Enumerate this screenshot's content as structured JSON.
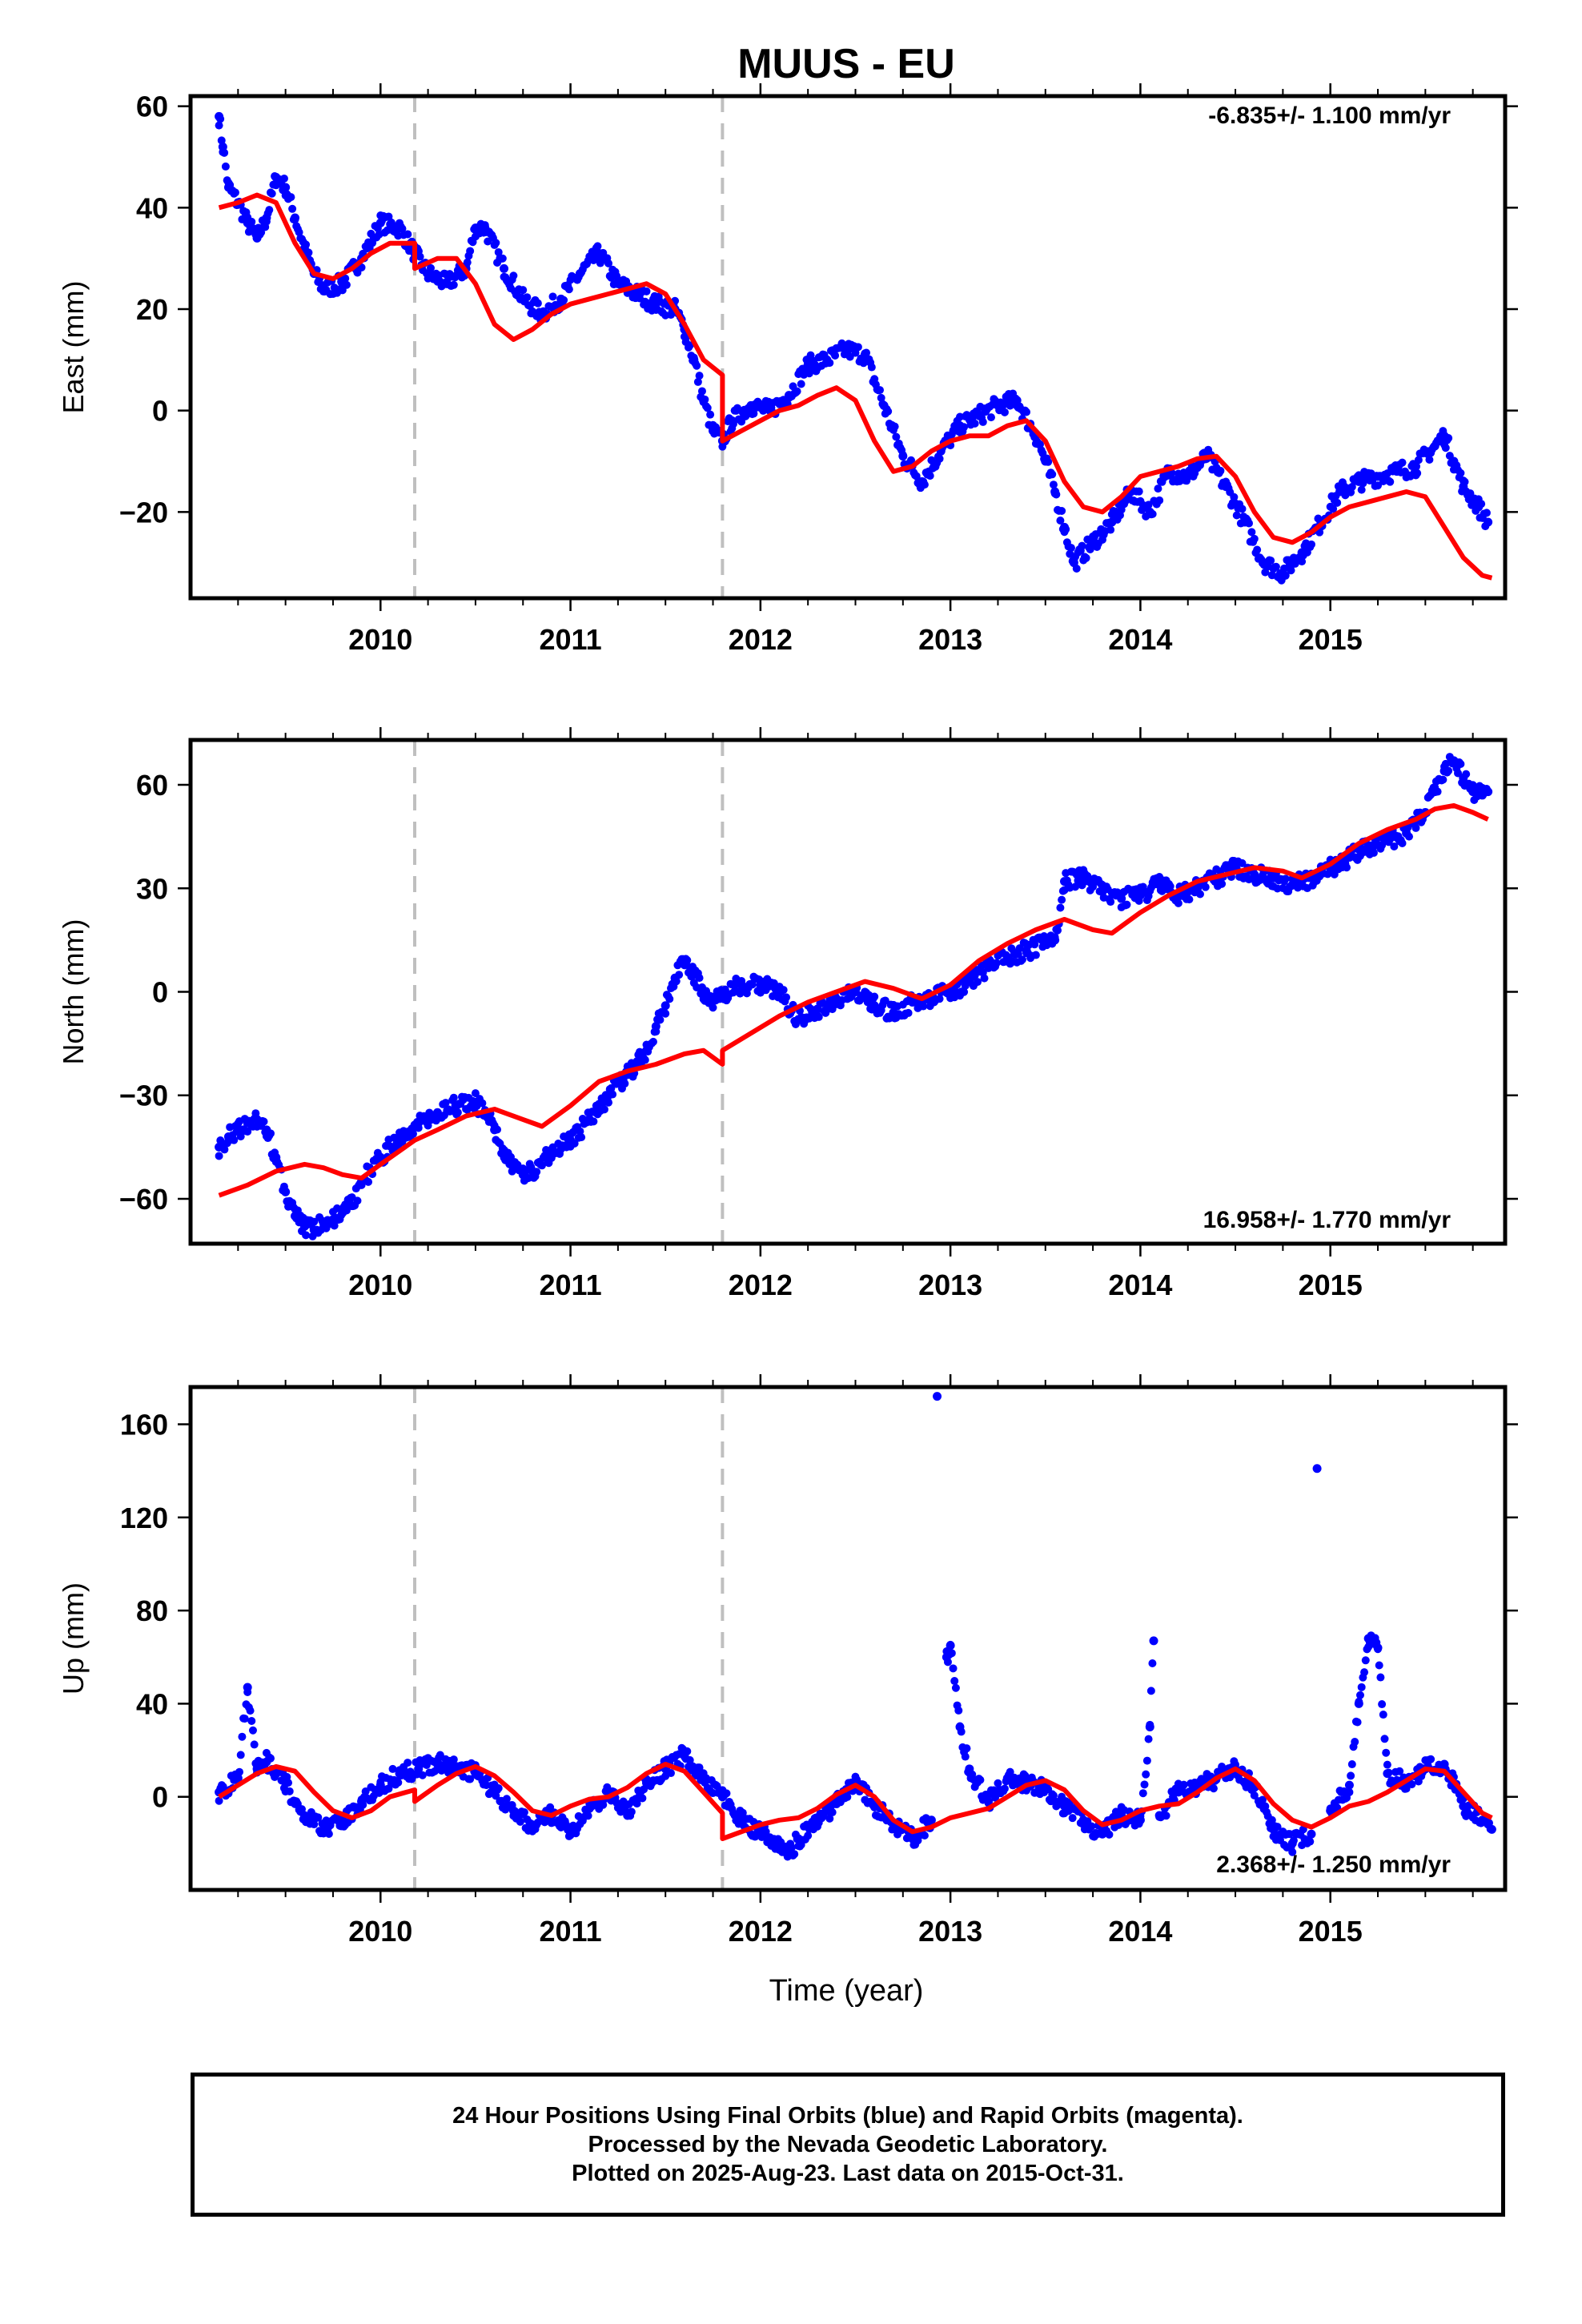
{
  "figure_title": "MUUS - EU",
  "colors": {
    "points": "#0000ff",
    "model": "#ff0000",
    "breaks": "#bfbfbf",
    "axes": "#000000"
  },
  "x_axis_label": "Time (year)",
  "footer": {
    "line1": "24 Hour Positions Using Final Orbits (blue) and Rapid Orbits (magenta).",
    "line2": "Processed by the Nevada Geodetic Laboratory.",
    "line3": "Plotted on 2025-Aug-23. Last data on 2015-Oct-31."
  },
  "chart_data": [
    {
      "type": "scatter",
      "ylabel": "East (mm)",
      "rate_label": "-6.835+/- 1.100 mm/yr",
      "xlim": [
        2009.0,
        2015.92
      ],
      "ylim": [
        -37,
        62
      ],
      "x_ticks": [
        2010,
        2011,
        2012,
        2013,
        2014,
        2015
      ],
      "y_ticks": [
        -20,
        0,
        20,
        40,
        60
      ],
      "y_tick_labels": [
        "−20",
        "0",
        "20",
        "40",
        "60"
      ],
      "breaks": [
        2010.18,
        2011.8
      ],
      "series": [
        {
          "name": "",
          "kind": "points",
          "x": [
            2009.15,
            2009.17,
            2009.2,
            2009.25,
            2009.3,
            2009.35,
            2009.4,
            2009.45,
            2009.5,
            2009.55,
            2009.6,
            2009.65,
            2009.7,
            2009.8,
            2009.9,
            2010.0,
            2010.1,
            2010.18,
            2010.25,
            2010.35,
            2010.45,
            2010.5,
            2010.55,
            2010.65,
            2010.75,
            2010.85,
            2010.95,
            2011.05,
            2011.15,
            2011.25,
            2011.35,
            2011.45,
            2011.55,
            2011.6,
            2011.65,
            2011.7,
            2011.75,
            2011.8,
            2011.85,
            2011.95,
            2012.05,
            2012.15,
            2012.25,
            2012.35,
            2012.45,
            2012.55,
            2012.65,
            2012.75,
            2012.85,
            2012.95,
            2013.05,
            2013.15,
            2013.25,
            2013.35,
            2013.45,
            2013.5,
            2013.55,
            2013.6,
            2013.65,
            2013.75,
            2013.85,
            2013.95,
            2014.05,
            2014.15,
            2014.25,
            2014.35,
            2014.45,
            2014.55,
            2014.65,
            2014.75,
            2014.85,
            2014.95,
            2015.05,
            2015.15,
            2015.25,
            2015.35,
            2015.45,
            2015.55,
            2015.6,
            2015.65,
            2015.7,
            2015.78,
            2015.83
          ],
          "y": [
            58,
            52,
            44,
            41,
            37,
            34,
            38,
            46,
            44,
            38,
            32,
            27,
            24,
            25,
            30,
            37,
            36,
            31,
            27,
            25,
            28,
            36,
            36,
            28,
            22,
            19,
            22,
            27,
            31,
            25,
            23,
            21,
            20,
            16,
            10,
            2,
            -4,
            -6,
            -2,
            1,
            0,
            3,
            9,
            10,
            12,
            11,
            1,
            -9,
            -14,
            -8,
            -3,
            -1,
            1,
            2,
            -5,
            -10,
            -16,
            -23,
            -30,
            -26,
            -22,
            -16,
            -20,
            -12,
            -13,
            -9,
            -15,
            -22,
            -30,
            -32,
            -28,
            -22,
            -16,
            -14,
            -13,
            -12,
            -11,
            -7,
            -5,
            -10,
            -15,
            -19,
            -22
          ]
        },
        {
          "name": "",
          "kind": "line",
          "x": [
            2009.15,
            2009.25,
            2009.35,
            2009.45,
            2009.55,
            2009.65,
            2009.75,
            2009.85,
            2009.95,
            2010.05,
            2010.18,
            2010.18,
            2010.3,
            2010.4,
            2010.5,
            2010.6,
            2010.7,
            2010.8,
            2010.9,
            2011.0,
            2011.1,
            2011.2,
            2011.3,
            2011.4,
            2011.5,
            2011.6,
            2011.7,
            2011.8,
            2011.8,
            2011.9,
            2012.0,
            2012.1,
            2012.2,
            2012.3,
            2012.4,
            2012.5,
            2012.6,
            2012.7,
            2012.8,
            2012.9,
            2013.0,
            2013.1,
            2013.2,
            2013.3,
            2013.4,
            2013.5,
            2013.6,
            2013.7,
            2013.8,
            2013.9,
            2014.0,
            2014.1,
            2014.2,
            2014.3,
            2014.4,
            2014.5,
            2014.6,
            2014.7,
            2014.8,
            2014.9,
            2015.0,
            2015.1,
            2015.2,
            2015.3,
            2015.4,
            2015.5,
            2015.6,
            2015.7,
            2015.8,
            2015.85
          ],
          "y": [
            40,
            41,
            42.5,
            41,
            33,
            27,
            26,
            28,
            31,
            33,
            33,
            28,
            30,
            30,
            25,
            17,
            14,
            16,
            19,
            21,
            22,
            23,
            24,
            25,
            23,
            17,
            10,
            7,
            -6,
            -4,
            -2,
            0,
            1,
            3,
            4.5,
            2,
            -6,
            -12,
            -11,
            -8,
            -6,
            -5,
            -5,
            -3,
            -2,
            -6,
            -14,
            -19,
            -20,
            -17,
            -13,
            -12,
            -11,
            -9.5,
            -9,
            -13,
            -20,
            -25,
            -26,
            -24,
            -21,
            -19,
            -18,
            -17,
            -16,
            -17,
            -23,
            -29,
            -32.5,
            -33
          ]
        }
      ]
    },
    {
      "type": "scatter",
      "ylabel": "North (mm)",
      "rate_label": "16.958+/- 1.770 mm/yr",
      "xlim": [
        2009.0,
        2015.92
      ],
      "ylim": [
        -73,
        73
      ],
      "x_ticks": [
        2010,
        2011,
        2012,
        2013,
        2014,
        2015
      ],
      "y_ticks": [
        -60,
        -30,
        0,
        30,
        60
      ],
      "y_tick_labels": [
        "−60",
        "−30",
        "0",
        "30",
        "60"
      ],
      "breaks": [
        2010.18,
        2011.8
      ],
      "series": [
        {
          "name": "",
          "kind": "points",
          "x": [
            2009.15,
            2009.2,
            2009.25,
            2009.3,
            2009.35,
            2009.4,
            2009.45,
            2009.5,
            2009.55,
            2009.6,
            2009.65,
            2009.7,
            2009.75,
            2009.8,
            2009.85,
            2009.9,
            2010.0,
            2010.1,
            2010.2,
            2010.3,
            2010.4,
            2010.5,
            2010.55,
            2010.6,
            2010.65,
            2010.7,
            2010.75,
            2010.8,
            2010.9,
            2011.0,
            2011.1,
            2011.2,
            2011.3,
            2011.4,
            2011.45,
            2011.5,
            2011.55,
            2011.6,
            2011.65,
            2011.7,
            2011.75,
            2011.9,
            2012.0,
            2012.1,
            2012.2,
            2012.3,
            2012.4,
            2012.5,
            2012.6,
            2012.7,
            2012.8,
            2012.9,
            2013.0,
            2013.1,
            2013.2,
            2013.3,
            2013.4,
            2013.5,
            2013.55,
            2013.6,
            2013.7,
            2013.8,
            2013.9,
            2014.0,
            2014.1,
            2014.2,
            2014.3,
            2014.4,
            2014.5,
            2014.6,
            2014.7,
            2014.8,
            2014.9,
            2015.0,
            2015.1,
            2015.2,
            2015.3,
            2015.4,
            2015.5,
            2015.55,
            2015.6,
            2015.65,
            2015.7,
            2015.75,
            2015.8,
            2015.83
          ],
          "y": [
            -45,
            -42,
            -40,
            -38,
            -37,
            -40,
            -48,
            -58,
            -65,
            -68,
            -69,
            -67,
            -66,
            -64,
            -62,
            -55,
            -48,
            -42,
            -38,
            -35,
            -33,
            -32,
            -35,
            -40,
            -46,
            -51,
            -53,
            -52,
            -47,
            -43,
            -37,
            -30,
            -24,
            -17,
            -10,
            -4,
            4,
            9,
            5,
            0,
            -2,
            2,
            2,
            0,
            -8,
            -5,
            -2,
            0,
            -4,
            -6,
            -3,
            -2,
            0,
            3,
            7,
            10,
            12,
            14,
            15,
            32,
            33,
            29,
            27,
            28,
            31,
            28,
            30,
            33,
            36,
            34,
            33,
            31,
            33,
            36,
            39,
            42,
            44,
            46,
            52,
            58,
            64,
            67,
            62,
            58,
            57,
            58
          ]
        },
        {
          "name": "",
          "kind": "line",
          "x": [
            2009.15,
            2009.3,
            2009.45,
            2009.6,
            2009.7,
            2009.8,
            2009.9,
            2010.0,
            2010.18,
            2010.18,
            2010.3,
            2010.45,
            2010.6,
            2010.75,
            2010.85,
            2011.0,
            2011.15,
            2011.3,
            2011.45,
            2011.6,
            2011.7,
            2011.8,
            2011.8,
            2011.95,
            2012.1,
            2012.25,
            2012.4,
            2012.55,
            2012.7,
            2012.85,
            2013.0,
            2013.15,
            2013.3,
            2013.45,
            2013.6,
            2013.75,
            2013.85,
            2014.0,
            2014.15,
            2014.3,
            2014.45,
            2014.6,
            2014.75,
            2014.85,
            2015.0,
            2015.15,
            2015.3,
            2015.45,
            2015.55,
            2015.65,
            2015.75,
            2015.83
          ],
          "y": [
            -59,
            -56,
            -52,
            -50,
            -51,
            -53,
            -54,
            -50,
            -43,
            -43,
            -40,
            -36,
            -34,
            -37,
            -39,
            -33,
            -26,
            -23,
            -21,
            -18,
            -17,
            -21,
            -17,
            -12,
            -7,
            -3,
            0,
            3,
            1,
            -2,
            2,
            9,
            14,
            18,
            21,
            18,
            17,
            23,
            28,
            32,
            34,
            36,
            35,
            33,
            37,
            43,
            47,
            50,
            53,
            54,
            52,
            50
          ]
        }
      ]
    },
    {
      "type": "scatter",
      "ylabel": "Up (mm)",
      "rate_label": "2.368+/- 1.250 mm/yr",
      "xlim": [
        2009.0,
        2015.92
      ],
      "ylim": [
        -40,
        176
      ],
      "x_ticks": [
        2010,
        2011,
        2012,
        2013,
        2014,
        2015
      ],
      "y_ticks": [
        0,
        40,
        80,
        120,
        160
      ],
      "y_tick_labels": [
        "0",
        "40",
        "80",
        "120",
        "160"
      ],
      "breaks": [
        2010.18,
        2011.8
      ],
      "series": [
        {
          "name": "",
          "kind": "points",
          "x": [
            2009.15,
            2009.25,
            2009.3,
            2009.35,
            2009.4,
            2009.45,
            2009.5,
            2009.55,
            2009.6,
            2009.7,
            2009.8,
            2009.9,
            2010.0,
            2010.1,
            2010.2,
            2010.3,
            2010.4,
            2010.5,
            2010.6,
            2010.7,
            2010.8,
            2010.9,
            2011.0,
            2011.1,
            2011.2,
            2011.3,
            2011.4,
            2011.5,
            2011.6,
            2011.7,
            2011.8,
            2011.9,
            2012.0,
            2012.1,
            2012.15,
            2012.2,
            2012.3,
            2012.4,
            2012.5,
            2012.6,
            2012.7,
            2012.8,
            2012.9,
            2012.93,
            2012.98,
            2013.0,
            2013.05,
            2013.1,
            2013.2,
            2013.3,
            2013.4,
            2013.5,
            2013.6,
            2013.7,
            2013.8,
            2013.9,
            2014.0,
            2014.05,
            2014.07,
            2014.1,
            2014.2,
            2014.3,
            2014.4,
            2014.5,
            2014.6,
            2014.7,
            2014.8,
            2014.9,
            2014.93,
            2015.0,
            2015.1,
            2015.15,
            2015.2,
            2015.25,
            2015.3,
            2015.4,
            2015.5,
            2015.6,
            2015.7,
            2015.8,
            2015.85
          ],
          "y": [
            2,
            8,
            47,
            12,
            15,
            10,
            6,
            -2,
            -8,
            -14,
            -10,
            -2,
            5,
            10,
            12,
            15,
            13,
            10,
            3,
            -6,
            -12,
            -8,
            -16,
            -5,
            2,
            -8,
            6,
            12,
            18,
            8,
            0,
            -10,
            -15,
            -20,
            -25,
            -18,
            -10,
            -3,
            6,
            -4,
            -12,
            -18,
            -10,
            172,
            60,
            65,
            30,
            12,
            -2,
            8,
            6,
            4,
            -4,
            -10,
            -16,
            -8,
            -10,
            30,
            67,
            -8,
            2,
            4,
            8,
            12,
            4,
            -14,
            -20,
            -16,
            141,
            -6,
            5,
            40,
            68,
            64,
            10,
            6,
            12,
            14,
            -4,
            -10,
            -14
          ]
        },
        {
          "name": "",
          "kind": "line",
          "x": [
            2009.15,
            2009.25,
            2009.35,
            2009.45,
            2009.55,
            2009.65,
            2009.75,
            2009.85,
            2009.95,
            2010.05,
            2010.18,
            2010.18,
            2010.3,
            2010.4,
            2010.5,
            2010.6,
            2010.7,
            2010.8,
            2010.9,
            2011.0,
            2011.1,
            2011.2,
            2011.3,
            2011.4,
            2011.5,
            2011.6,
            2011.7,
            2011.8,
            2011.8,
            2011.9,
            2012.0,
            2012.1,
            2012.2,
            2012.3,
            2012.4,
            2012.5,
            2012.6,
            2012.7,
            2012.8,
            2012.9,
            2013.0,
            2013.1,
            2013.2,
            2013.3,
            2013.4,
            2013.5,
            2013.6,
            2013.7,
            2013.8,
            2013.9,
            2014.0,
            2014.1,
            2014.2,
            2014.3,
            2014.4,
            2014.5,
            2014.6,
            2014.7,
            2014.8,
            2014.9,
            2015.0,
            2015.1,
            2015.2,
            2015.3,
            2015.4,
            2015.5,
            2015.6,
            2015.7,
            2015.8,
            2015.85
          ],
          "y": [
            0,
            5,
            10,
            13,
            11,
            2,
            -6,
            -9,
            -6,
            0,
            3,
            -2,
            5,
            10,
            13,
            9,
            2,
            -6,
            -8,
            -4,
            -1,
            0,
            4,
            10,
            14,
            11,
            2,
            -7,
            -18,
            -15,
            -12,
            -10,
            -9,
            -5,
            1,
            5,
            0,
            -10,
            -15,
            -13,
            -9,
            -7,
            -5,
            0,
            5,
            7,
            3,
            -6,
            -12,
            -10,
            -6,
            -4,
            -3,
            2,
            8,
            12,
            7,
            -3,
            -10,
            -13,
            -9,
            -4,
            -2,
            2,
            7,
            12,
            11,
            2,
            -7,
            -9
          ]
        }
      ]
    }
  ]
}
